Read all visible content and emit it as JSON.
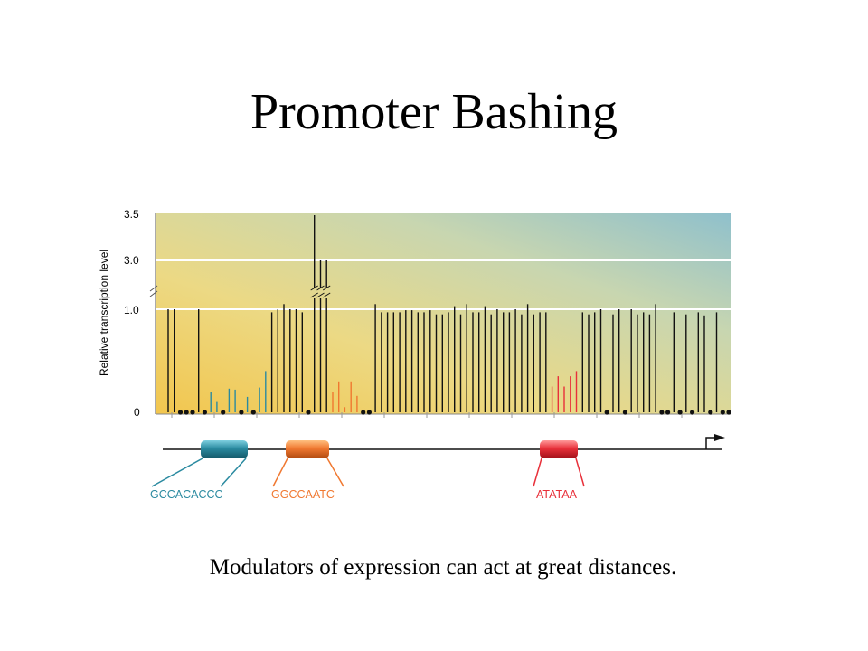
{
  "slide": {
    "title": "Promoter Bashing",
    "caption": "Modulators of expression can act at great distances."
  },
  "chart_data": {
    "type": "bar",
    "ylabel": "Relative transcription level",
    "yticks": [
      "0",
      "1.0",
      "3.0",
      "3.5"
    ],
    "y_axis_break": "between 1.0 and 3.0",
    "series": [
      {
        "values": [
          1.0,
          1.0,
          0.0,
          0.0,
          0.0,
          1.0,
          0.0,
          0.2,
          0.1,
          0.0,
          0.23,
          0.22,
          0.0,
          0.15,
          0.0,
          0.24,
          0.4,
          0.97,
          1.0,
          1.05,
          1.0,
          1.0,
          0.97,
          0.0,
          3.5,
          3.0,
          3.0,
          0.2,
          0.3,
          0.05,
          0.3,
          0.16,
          0.0,
          0.0,
          1.05,
          0.97,
          0.97,
          0.97,
          0.97,
          0.99,
          0.99,
          0.97,
          0.97,
          0.99,
          0.95,
          0.95,
          0.97,
          1.03,
          0.95,
          1.05,
          0.97,
          0.97,
          1.03,
          0.95,
          1.0,
          0.97,
          0.97,
          1.0,
          0.95,
          1.05,
          0.95,
          0.97,
          0.97,
          0.25,
          0.35,
          0.25,
          0.35,
          0.4,
          0.97,
          0.95,
          0.97,
          1.0,
          0.0,
          0.95,
          1.0,
          0.0,
          1.0,
          0.95,
          0.97,
          0.95,
          1.05,
          0.0,
          0.0,
          0.97,
          0.0,
          0.95,
          0.0,
          0.97,
          0.94,
          0.0,
          0.97,
          0.0,
          0.0
        ]
      }
    ],
    "element_colors": {
      "GCCACACCC": "#2a8aa0",
      "GGCCAATC": "#f07830",
      "ATATAA": "#e8303a",
      "other": "#111111"
    },
    "colored_ranges": {
      "GCCACACCC": [
        7,
        16
      ],
      "GGCCAATC": [
        27,
        33
      ],
      "ATATAA": [
        63,
        67
      ]
    },
    "elements": [
      {
        "label": "GCCACACCC",
        "color": "#2a8aa0"
      },
      {
        "label": "GGCCAATC",
        "color": "#f07830"
      },
      {
        "label": "ATATAA",
        "color": "#e8303a"
      }
    ],
    "grid": true
  }
}
